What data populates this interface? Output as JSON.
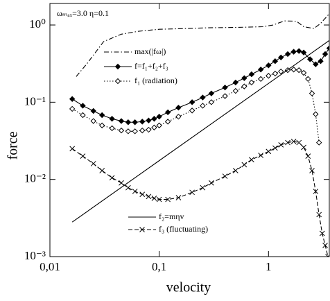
{
  "chart_data": {
    "type": "line",
    "annotation": "ωₘₐₓ=3.0  η=0.1",
    "xlabel": "velocity",
    "ylabel": "force",
    "xscale": "log",
    "yscale": "log",
    "xlim": [
      0.01,
      3.6
    ],
    "ylim": [
      0.001,
      1.9
    ],
    "xticks": [
      {
        "value": 0.01,
        "label": "0,01"
      },
      {
        "value": 0.1,
        "label": "0,1"
      },
      1
    ],
    "yticks": [
      {
        "value": 0.001,
        "label": "10⁻³"
      },
      {
        "value": 0.01,
        "label": "10⁻²"
      },
      {
        "value": 0.1,
        "label": "10⁻¹"
      },
      {
        "value": 1,
        "label": "10⁰"
      }
    ],
    "series": [
      {
        "name": "max(|fω|)",
        "color": "#000000",
        "style": "dashdot",
        "marker": "none",
        "x": [
          0.0174,
          0.022,
          0.031,
          0.045,
          0.065,
          0.1,
          0.18,
          0.28,
          0.5,
          0.89,
          1.1,
          1.4,
          1.8,
          2.1,
          2.6,
          3.0,
          3.6
        ],
        "values": [
          0.215,
          0.32,
          0.61,
          0.76,
          0.83,
          0.88,
          0.9,
          0.92,
          0.93,
          0.95,
          1.0,
          1.13,
          1.12,
          0.95,
          0.9,
          1.05,
          1.4
        ]
      },
      {
        "name": "f=f₁+f₂+f₃",
        "color": "#000000",
        "style": "solid",
        "marker": "diamond-filled",
        "x": [
          0.016,
          0.02,
          0.025,
          0.03,
          0.037,
          0.045,
          0.052,
          0.06,
          0.07,
          0.08,
          0.09,
          0.1,
          0.12,
          0.15,
          0.2,
          0.25,
          0.3,
          0.4,
          0.5,
          0.6,
          0.7,
          0.85,
          1.0,
          1.15,
          1.3,
          1.5,
          1.7,
          1.9,
          2.1,
          2.4,
          2.7,
          3.0,
          3.3,
          3.6
        ],
        "values": [
          0.11,
          0.09,
          0.077,
          0.068,
          0.061,
          0.057,
          0.055,
          0.055,
          0.056,
          0.058,
          0.061,
          0.065,
          0.074,
          0.085,
          0.1,
          0.115,
          0.13,
          0.155,
          0.18,
          0.205,
          0.23,
          0.265,
          0.3,
          0.34,
          0.38,
          0.42,
          0.45,
          0.46,
          0.44,
          0.36,
          0.31,
          0.34,
          0.42,
          0.5
        ]
      },
      {
        "name": "f₁ (radiation)",
        "color": "#000000",
        "style": "dotted",
        "marker": "diamond-open",
        "x": [
          0.016,
          0.02,
          0.025,
          0.03,
          0.037,
          0.045,
          0.052,
          0.06,
          0.07,
          0.08,
          0.09,
          0.1,
          0.12,
          0.15,
          0.2,
          0.25,
          0.3,
          0.4,
          0.5,
          0.6,
          0.7,
          0.85,
          1.0,
          1.15,
          1.3,
          1.5,
          1.7,
          1.9,
          2.1,
          2.3,
          2.5,
          2.7,
          2.9
        ],
        "values": [
          0.082,
          0.068,
          0.057,
          0.05,
          0.046,
          0.043,
          0.042,
          0.042,
          0.043,
          0.044,
          0.047,
          0.05,
          0.056,
          0.065,
          0.078,
          0.09,
          0.1,
          0.12,
          0.14,
          0.16,
          0.18,
          0.2,
          0.22,
          0.235,
          0.25,
          0.26,
          0.265,
          0.26,
          0.24,
          0.2,
          0.13,
          0.07,
          0.03
        ]
      },
      {
        "name": "f₂=mηv",
        "color": "#000000",
        "style": "solid",
        "marker": "none",
        "x": [
          0.016,
          0.1,
          1,
          3.6
        ],
        "values": [
          0.0028,
          0.0175,
          0.175,
          0.63
        ]
      },
      {
        "name": "f₃ (fluctuating)",
        "color": "#000000",
        "style": "dashed",
        "marker": "cross",
        "x": [
          0.016,
          0.02,
          0.025,
          0.03,
          0.037,
          0.045,
          0.052,
          0.06,
          0.07,
          0.08,
          0.09,
          0.1,
          0.12,
          0.15,
          0.2,
          0.25,
          0.3,
          0.4,
          0.5,
          0.6,
          0.7,
          0.85,
          1.0,
          1.15,
          1.3,
          1.5,
          1.7,
          1.9,
          2.1,
          2.3,
          2.5,
          2.7,
          2.9,
          3.1,
          3.3,
          3.5
        ],
        "values": [
          0.025,
          0.02,
          0.016,
          0.013,
          0.0105,
          0.009,
          0.0078,
          0.007,
          0.0064,
          0.006,
          0.0057,
          0.0055,
          0.0055,
          0.0058,
          0.0068,
          0.0078,
          0.009,
          0.011,
          0.013,
          0.0155,
          0.018,
          0.0205,
          0.023,
          0.0255,
          0.028,
          0.03,
          0.031,
          0.03,
          0.026,
          0.02,
          0.013,
          0.007,
          0.0035,
          0.002,
          0.0014,
          0.001
        ]
      }
    ]
  }
}
